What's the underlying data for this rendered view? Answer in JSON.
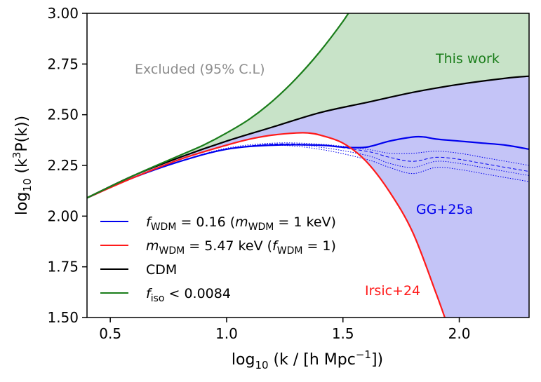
{
  "chart_data": {
    "type": "line",
    "xlabel": "log10 (k / [h Mpc−1])",
    "ylabel": "log10 (k3P(k))",
    "xlim": [
      0.4,
      2.3
    ],
    "ylim": [
      1.5,
      3.0
    ],
    "xticks": [
      "0.5",
      "1.0",
      "1.5",
      "2.0"
    ],
    "yticks": [
      "1.50",
      "1.75",
      "2.00",
      "2.25",
      "2.50",
      "2.75",
      "3.00"
    ],
    "grid": false,
    "legend_position": "lower-left",
    "colors": {
      "wdm_fraction": "#0000ee",
      "wdm_full": "#ff1a1a",
      "cdm": "#000000",
      "iso": "#1a7d1a",
      "excluded_text": "#8c8c8c",
      "green_fill": "#c8e3c8",
      "blue_fill": "#c4c4f7"
    },
    "series": [
      {
        "key": "wdm_fraction",
        "x": [
          0.4,
          0.6,
          0.8,
          1.0,
          1.2,
          1.4,
          1.5,
          1.6,
          1.7,
          1.8,
          1.85,
          1.9,
          2.0,
          2.1,
          2.2,
          2.3
        ],
        "y": [
          2.09,
          2.19,
          2.27,
          2.33,
          2.35,
          2.35,
          2.34,
          2.34,
          2.37,
          2.39,
          2.39,
          2.38,
          2.37,
          2.36,
          2.35,
          2.33
        ]
      },
      {
        "key": "wdm_full",
        "x": [
          0.4,
          0.6,
          0.8,
          1.0,
          1.1,
          1.2,
          1.3,
          1.35,
          1.4,
          1.5,
          1.6,
          1.7,
          1.8,
          1.9,
          1.95
        ],
        "y": [
          2.09,
          2.19,
          2.28,
          2.35,
          2.38,
          2.4,
          2.41,
          2.41,
          2.4,
          2.36,
          2.27,
          2.12,
          1.92,
          1.62,
          1.46
        ]
      },
      {
        "key": "cdm",
        "x": [
          0.4,
          0.6,
          0.8,
          1.0,
          1.2,
          1.4,
          1.6,
          1.8,
          2.0,
          2.2,
          2.3
        ],
        "y": [
          2.09,
          2.2,
          2.29,
          2.37,
          2.44,
          2.51,
          2.56,
          2.61,
          2.65,
          2.68,
          2.69
        ]
      },
      {
        "key": "iso",
        "x": [
          0.4,
          0.6,
          0.8,
          0.9,
          1.0,
          1.1,
          1.2,
          1.3,
          1.4,
          1.5,
          1.55
        ],
        "y": [
          2.09,
          2.2,
          2.3,
          2.35,
          2.41,
          2.48,
          2.57,
          2.68,
          2.81,
          2.96,
          3.05
        ]
      }
    ],
    "dashed_series": [
      {
        "style": "dashed",
        "x": [
          0.4,
          0.6,
          0.8,
          1.0,
          1.2,
          1.4,
          1.6,
          1.7,
          1.8,
          1.9,
          2.0,
          2.1,
          2.2,
          2.3
        ],
        "y": [
          2.09,
          2.19,
          2.27,
          2.33,
          2.355,
          2.35,
          2.32,
          2.29,
          2.27,
          2.29,
          2.28,
          2.26,
          2.24,
          2.22
        ]
      },
      {
        "style": "dotted",
        "x": [
          0.4,
          0.6,
          0.8,
          1.0,
          1.2,
          1.4,
          1.6,
          1.7,
          1.8,
          1.9,
          2.0,
          2.1,
          2.2,
          2.3
        ],
        "y": [
          2.09,
          2.19,
          2.27,
          2.335,
          2.36,
          2.355,
          2.33,
          2.31,
          2.31,
          2.32,
          2.31,
          2.29,
          2.27,
          2.25
        ]
      },
      {
        "style": "dotted",
        "x": [
          0.4,
          0.6,
          0.8,
          1.0,
          1.2,
          1.4,
          1.6,
          1.7,
          1.8,
          1.9,
          2.0,
          2.1,
          2.2,
          2.3
        ],
        "y": [
          2.09,
          2.19,
          2.27,
          2.33,
          2.355,
          2.34,
          2.3,
          2.26,
          2.24,
          2.27,
          2.26,
          2.24,
          2.22,
          2.2
        ]
      },
      {
        "style": "dotted",
        "x": [
          0.4,
          0.6,
          0.8,
          1.0,
          1.2,
          1.4,
          1.6,
          1.7,
          1.8,
          1.9,
          2.0,
          2.1,
          2.2,
          2.3
        ],
        "y": [
          2.09,
          2.19,
          2.27,
          2.33,
          2.35,
          2.33,
          2.28,
          2.24,
          2.21,
          2.24,
          2.23,
          2.21,
          2.19,
          2.17
        ]
      }
    ],
    "annotations": {
      "excluded": "Excluded (95% C.L)",
      "this_work": "This work",
      "gg": "GG+25a",
      "irsic": "Irsic+24"
    },
    "legend": [
      {
        "key": "wdm_fraction",
        "text": "fWDM = 0.16 (mWDM = 1 keV)"
      },
      {
        "key": "wdm_full",
        "text": "mWDM = 5.47 keV (fWDM = 1)"
      },
      {
        "key": "cdm",
        "text": "CDM"
      },
      {
        "key": "iso",
        "text": "fiso < 0.0084"
      }
    ]
  }
}
